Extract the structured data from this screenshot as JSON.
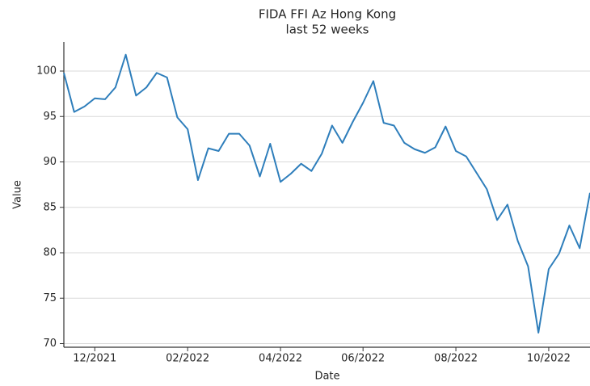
{
  "chart_data": {
    "type": "line",
    "title": "FIDA FFI Az Hong Kong",
    "subtitle": "last 52 weeks",
    "x_label": "Date",
    "y_label": "Value",
    "x": [
      "11/2021",
      "11/2021",
      "11/2021",
      "12/2021",
      "12/2021",
      "12/2021",
      "12/2021",
      "12/2021",
      "01/2022",
      "01/2022",
      "01/2022",
      "01/2022",
      "02/2022",
      "02/2022",
      "02/2022",
      "02/2022",
      "03/2022",
      "03/2022",
      "03/2022",
      "03/2022",
      "03/2022",
      "04/2022",
      "04/2022",
      "04/2022",
      "04/2022",
      "05/2022",
      "05/2022",
      "05/2022",
      "05/2022",
      "06/2022",
      "06/2022",
      "06/2022",
      "06/2022",
      "06/2022",
      "07/2022",
      "07/2022",
      "07/2022",
      "07/2022",
      "08/2022",
      "08/2022",
      "08/2022",
      "08/2022",
      "08/2022",
      "09/2022",
      "09/2022",
      "09/2022",
      "09/2022",
      "10/2022",
      "10/2022",
      "10/2022",
      "10/2022",
      "11/2022"
    ],
    "series": [
      {
        "name": "Value",
        "color": "#2e7ebb",
        "values": [
          99.8,
          95.5,
          96.1,
          97.0,
          96.9,
          98.2,
          101.8,
          97.3,
          98.2,
          99.8,
          99.3,
          94.9,
          93.6,
          88.0,
          91.5,
          91.2,
          93.1,
          93.1,
          91.8,
          88.4,
          92.0,
          87.8,
          88.7,
          89.8,
          89.0,
          90.9,
          94.0,
          92.1,
          94.4,
          96.5,
          98.9,
          94.3,
          94.0,
          92.1,
          91.4,
          91.0,
          91.6,
          93.9,
          91.2,
          90.6,
          88.8,
          87.0,
          83.6,
          85.3,
          81.3,
          78.5,
          71.2,
          78.2,
          79.9,
          83.0,
          80.5,
          86.6
        ]
      }
    ],
    "xticks": [
      "12/2021",
      "02/2022",
      "04/2022",
      "06/2022",
      "08/2022",
      "10/2022"
    ],
    "ylim": [
      69.6,
      103.2
    ],
    "yticks": [
      70,
      75,
      80,
      85,
      90,
      95,
      100
    ],
    "grid": true
  }
}
